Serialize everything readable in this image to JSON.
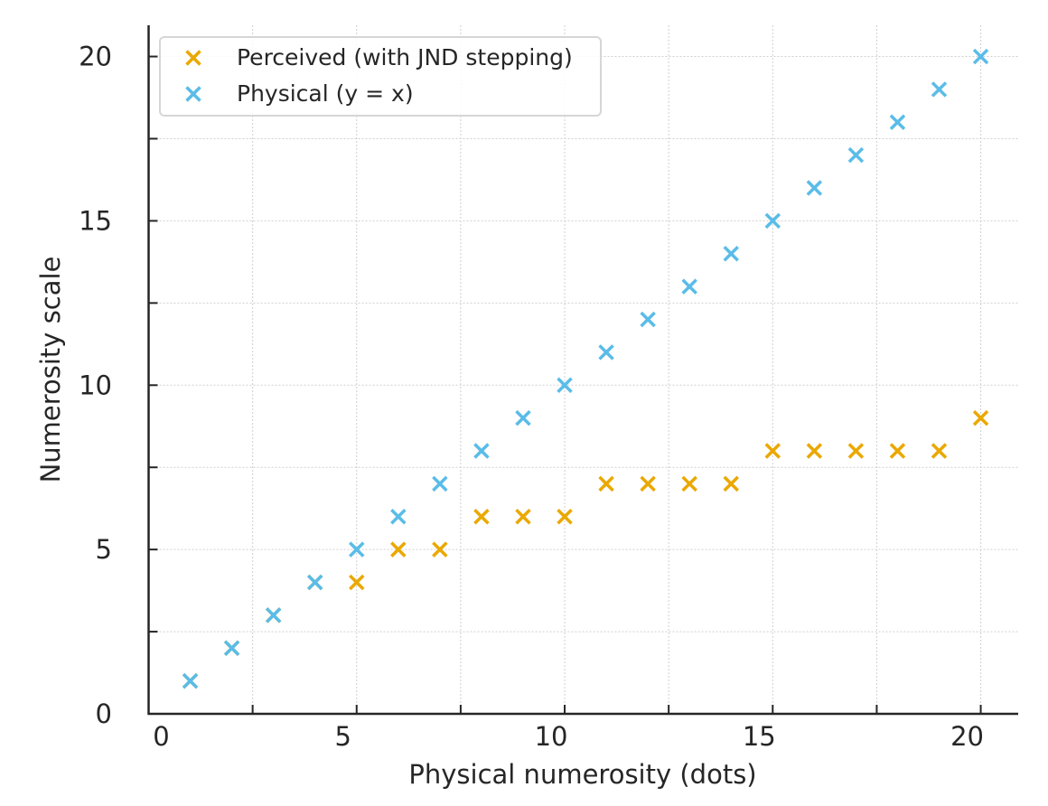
{
  "chart_data": {
    "type": "scatter",
    "title": "",
    "xlabel": "Physical numerosity (dots)",
    "ylabel": "Numerosity scale",
    "xlim": [
      0,
      20.9
    ],
    "ylim": [
      0,
      20.95
    ],
    "xticks": [
      0,
      5,
      10,
      15,
      20
    ],
    "yticks": [
      0,
      5,
      10,
      15,
      20
    ],
    "minor_ticks": [
      2.5,
      7.5,
      12.5,
      17.5
    ],
    "grid": true,
    "legend_position": "top-left",
    "x": [
      1,
      2,
      3,
      4,
      5,
      6,
      7,
      8,
      9,
      10,
      11,
      12,
      13,
      14,
      15,
      16,
      17,
      18,
      19,
      20
    ],
    "series": [
      {
        "name": "Perceived (with JND stepping)",
        "color": "#EAA800",
        "marker": "x",
        "values": [
          1,
          2,
          3,
          4,
          4,
          5,
          5,
          6,
          6,
          6,
          7,
          7,
          7,
          7,
          8,
          8,
          8,
          8,
          8,
          9
        ]
      },
      {
        "name": "Physical (y = x)",
        "color": "#5ABCE8",
        "marker": "x",
        "values": [
          1,
          2,
          3,
          4,
          5,
          6,
          7,
          8,
          9,
          10,
          11,
          12,
          13,
          14,
          15,
          16,
          17,
          18,
          19,
          20
        ]
      }
    ]
  }
}
